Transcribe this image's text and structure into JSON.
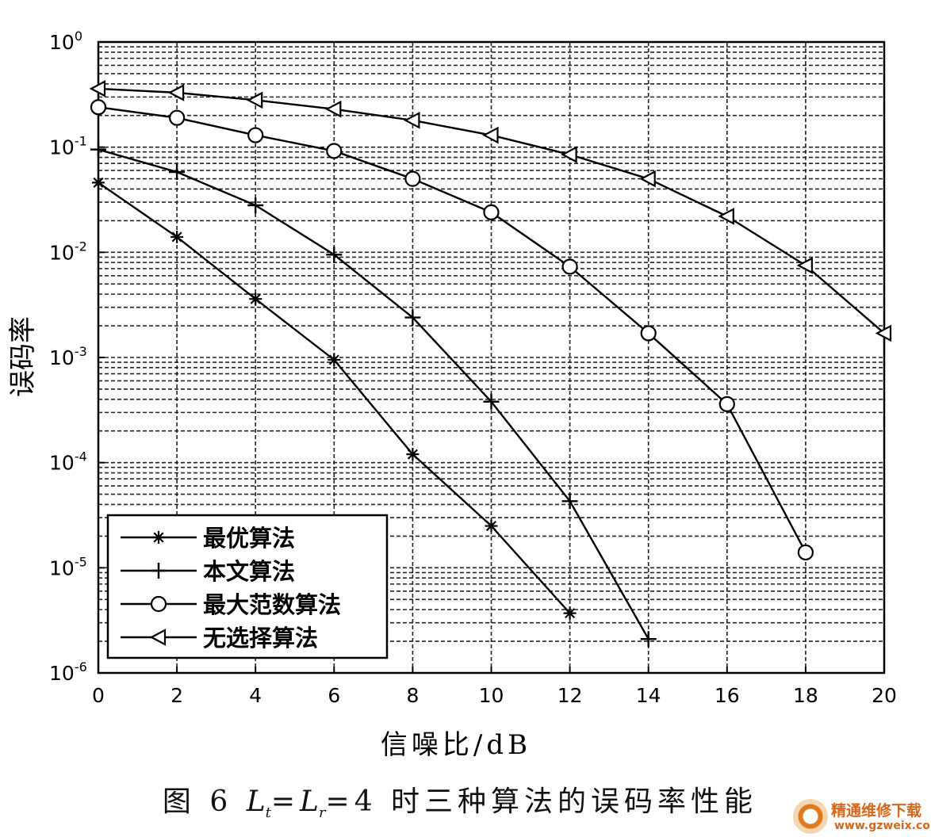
{
  "chart_data": {
    "type": "line",
    "title": "",
    "xlabel": "信噪比/dB",
    "ylabel": "误码率",
    "xlim": [
      0,
      20
    ],
    "ylim": [
      1e-06,
      1
    ],
    "y_scale": "log",
    "grid": true,
    "grid_style": "dashed",
    "legend_position": "bottom-left",
    "x_ticks": [
      "0",
      "2",
      "4",
      "6",
      "8",
      "10",
      "12",
      "14",
      "16",
      "18",
      "20"
    ],
    "y_ticks": [
      {
        "base": "10",
        "exp": "0"
      },
      {
        "base": "10",
        "exp": "-1"
      },
      {
        "base": "10",
        "exp": "-2"
      },
      {
        "base": "10",
        "exp": "-3"
      },
      {
        "base": "10",
        "exp": "-4"
      },
      {
        "base": "10",
        "exp": "-5"
      },
      {
        "base": "10",
        "exp": "-6"
      }
    ],
    "series": [
      {
        "name": "最优算法",
        "marker": "star",
        "x": [
          0,
          2,
          4,
          6,
          8,
          10,
          12
        ],
        "y": [
          0.046,
          0.014,
          0.0036,
          0.00095,
          0.00012,
          2.5e-05,
          3.7e-06
        ]
      },
      {
        "name": "本文算法",
        "marker": "plus",
        "x": [
          0,
          2,
          4,
          6,
          8,
          10,
          12,
          14
        ],
        "y": [
          0.095,
          0.058,
          0.028,
          0.0095,
          0.0024,
          0.00038,
          4.3e-05,
          2.1e-06
        ]
      },
      {
        "name": "最大范数算法",
        "marker": "circle",
        "x": [
          0,
          2,
          4,
          6,
          8,
          10,
          12,
          14,
          16,
          18
        ],
        "y": [
          0.24,
          0.19,
          0.13,
          0.092,
          0.05,
          0.024,
          0.0073,
          0.0017,
          0.00036,
          1.4e-05
        ]
      },
      {
        "name": "无选择算法",
        "marker": "triangle-left",
        "x": [
          0,
          2,
          4,
          6,
          8,
          10,
          12,
          14,
          16,
          18,
          20
        ],
        "y": [
          0.36,
          0.33,
          0.28,
          0.23,
          0.18,
          0.13,
          0.085,
          0.05,
          0.022,
          0.0075,
          0.0017
        ]
      }
    ]
  },
  "caption": {
    "prefix": "图 6 ",
    "lt": "L",
    "lt_sub": "t",
    "eq1": "=",
    "lr": "L",
    "lr_sub": "r",
    "eq2": "=4 时三种算法的误码率性能"
  },
  "watermark": {
    "name_cn": "精通维修下载",
    "url": "www.gzweix.com"
  }
}
